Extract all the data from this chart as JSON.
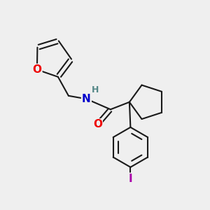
{
  "bg_color": "#efefef",
  "bond_color": "#1a1a1a",
  "bond_width": 1.5,
  "atom_colors": {
    "O": "#ee0000",
    "N": "#0000cc",
    "H": "#558888",
    "I": "#aa00aa"
  },
  "font_size_atom": 11,
  "font_size_H": 9
}
